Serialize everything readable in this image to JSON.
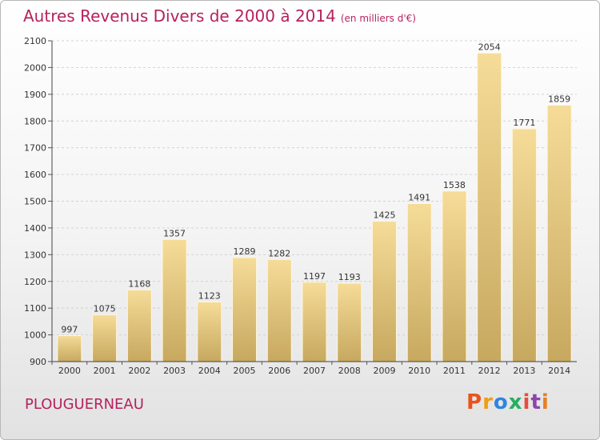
{
  "header": {
    "title": "Autres Revenus Divers de 2000 à 2014",
    "unit": "(en milliers d'€)"
  },
  "footer": {
    "place": "PLOUGUERNEAU",
    "brand": "Proxiti",
    "brand_colors": [
      "#e8541c",
      "#f39c12",
      "#2e86de",
      "#27ae60",
      "#e74c3c",
      "#8e44ad",
      "#e67e22"
    ]
  },
  "chart_data": {
    "type": "bar",
    "title": "Autres Revenus Divers de 2000 à 2014",
    "subtitle": "(en milliers d'€)",
    "categories": [
      "2000",
      "2001",
      "2002",
      "2003",
      "2004",
      "2005",
      "2006",
      "2007",
      "2008",
      "2009",
      "2010",
      "2011",
      "2012",
      "2013",
      "2014"
    ],
    "values": [
      997,
      1075,
      1168,
      1357,
      1123,
      1289,
      1282,
      1197,
      1193,
      1425,
      1491,
      1538,
      2054,
      1771,
      1859
    ],
    "ylim": [
      900,
      2100
    ],
    "yticks": [
      900,
      1000,
      1100,
      1200,
      1300,
      1400,
      1500,
      1600,
      1700,
      1800,
      1900,
      2000,
      2100
    ],
    "grid": true,
    "bar_color_top": "#f5dc98",
    "bar_color_bottom": "#c7a85f"
  }
}
